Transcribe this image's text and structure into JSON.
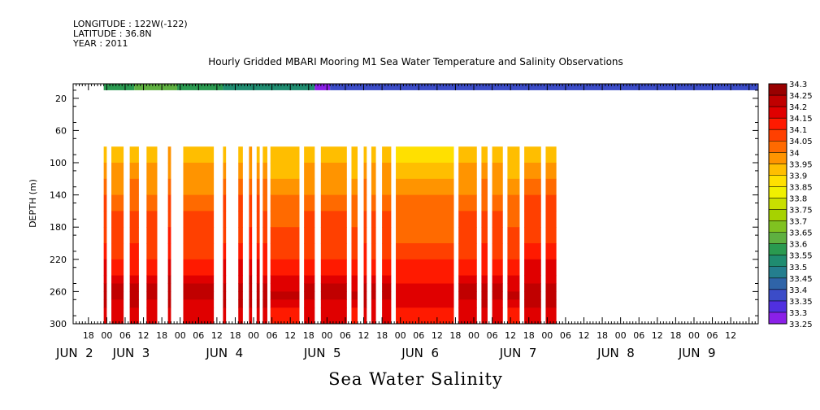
{
  "header": {
    "longitude": "LONGITUDE : 122W(-122)",
    "latitude": "LATITUDE : 36.8N",
    "year": "YEAR : 2011"
  },
  "chart_data": {
    "type": "heatmap",
    "title": "Hourly Gridded MBARI Mooring M1 Sea Water Temperature and Salinity Observations",
    "caption": "Sea Water Salinity",
    "ylabel": "DEPTH (m)",
    "x_unit": "hours from JUN 1 00:00",
    "xlim": [
      13,
      237
    ],
    "ylim": [
      300,
      2
    ],
    "y_reversed": true,
    "y_ticks": [
      20,
      60,
      100,
      140,
      180,
      220,
      260,
      300
    ],
    "x_hour_ticks": [
      {
        "x": 18,
        "label": "18"
      },
      {
        "x": 24,
        "label": "00"
      },
      {
        "x": 30,
        "label": "06"
      },
      {
        "x": 36,
        "label": "12"
      },
      {
        "x": 42,
        "label": "18"
      },
      {
        "x": 48,
        "label": "00"
      },
      {
        "x": 54,
        "label": "06"
      },
      {
        "x": 60,
        "label": "12"
      },
      {
        "x": 66,
        "label": "18"
      },
      {
        "x": 72,
        "label": "00"
      },
      {
        "x": 78,
        "label": "06"
      },
      {
        "x": 84,
        "label": "12"
      },
      {
        "x": 90,
        "label": "18"
      },
      {
        "x": 96,
        "label": "00"
      },
      {
        "x": 102,
        "label": "06"
      },
      {
        "x": 108,
        "label": "12"
      },
      {
        "x": 114,
        "label": "18"
      },
      {
        "x": 120,
        "label": "00"
      },
      {
        "x": 126,
        "label": "06"
      },
      {
        "x": 132,
        "label": "12"
      },
      {
        "x": 138,
        "label": "18"
      },
      {
        "x": 144,
        "label": "00"
      },
      {
        "x": 150,
        "label": "06"
      },
      {
        "x": 156,
        "label": "12"
      },
      {
        "x": 162,
        "label": "18"
      },
      {
        "x": 168,
        "label": "00"
      },
      {
        "x": 174,
        "label": "06"
      },
      {
        "x": 180,
        "label": "12"
      },
      {
        "x": 186,
        "label": "18"
      },
      {
        "x": 192,
        "label": "00"
      },
      {
        "x": 198,
        "label": "06"
      },
      {
        "x": 204,
        "label": "12"
      },
      {
        "x": 210,
        "label": "18"
      },
      {
        "x": 216,
        "label": "00"
      },
      {
        "x": 222,
        "label": "06"
      },
      {
        "x": 228,
        "label": "12"
      }
    ],
    "x_day_labels": [
      {
        "x": 13.5,
        "label": "JUN  2"
      },
      {
        "x": 32,
        "label": "JUN  3"
      },
      {
        "x": 62.5,
        "label": "JUN  4"
      },
      {
        "x": 94.5,
        "label": "JUN  5"
      },
      {
        "x": 126.5,
        "label": "JUN  6"
      },
      {
        "x": 158.5,
        "label": "JUN  7"
      },
      {
        "x": 190.5,
        "label": "JUN  8"
      },
      {
        "x": 217,
        "label": "JUN  9"
      }
    ],
    "colorbar": {
      "levels": [
        "34.3",
        "34.25",
        "34.2",
        "34.15",
        "34.1",
        "34.05",
        "34",
        "33.95",
        "33.9",
        "33.85",
        "33.8",
        "33.75",
        "33.7",
        "33.65",
        "33.6",
        "33.55",
        "33.5",
        "33.45",
        "33.4",
        "33.35",
        "33.3",
        "33.25"
      ],
      "colors": [
        "#990000",
        "#c00000",
        "#e00000",
        "#ff1a00",
        "#ff4000",
        "#ff6a00",
        "#ff9400",
        "#ffbe00",
        "#ffe000",
        "#f0f000",
        "#c8e000",
        "#a6d200",
        "#80c220",
        "#5eb040",
        "#2a9a50",
        "#1f8c70",
        "#247e8e",
        "#2f64a8",
        "#3b4cc8",
        "#5030e0",
        "#8a20e8",
        "#d41cf0"
      ]
    },
    "surface_band": {
      "depth_range": [
        2,
        10
      ],
      "segments": [
        {
          "x0": 23,
          "x1": 33,
          "value": 33.62
        },
        {
          "x0": 33,
          "x1": 47,
          "value": 33.68
        },
        {
          "x0": 47,
          "x1": 62,
          "value": 33.64
        },
        {
          "x0": 62,
          "x1": 92,
          "value": 33.58
        },
        {
          "x0": 92,
          "x1": 97,
          "value": 33.3
        },
        {
          "x0": 97,
          "x1": 237,
          "value": 33.42
        }
      ]
    },
    "profile_depths": [
      80,
      100,
      120,
      140,
      160,
      180,
      200,
      220,
      240,
      250,
      260,
      270,
      280,
      300
    ],
    "profile_values": [
      33.97,
      34.0,
      34.04,
      34.08,
      34.1,
      34.12,
      34.14,
      34.18,
      34.22,
      34.25,
      34.26,
      34.24,
      34.2,
      34.17
    ],
    "data_blocks": [
      {
        "x0": 23,
        "x1": 24,
        "adj": 0.02
      },
      {
        "x0": 25.5,
        "x1": 29.5,
        "adj": 0.0
      },
      {
        "x0": 31.5,
        "x1": 34.5,
        "adj": 0.01
      },
      {
        "x0": 37,
        "x1": 40.5,
        "adj": 0.0
      },
      {
        "x0": 44,
        "x1": 45,
        "adj": 0.03
      },
      {
        "x0": 49,
        "x1": 59,
        "adj": 0.0
      },
      {
        "x0": 62,
        "x1": 63,
        "adj": 0.02
      },
      {
        "x0": 67,
        "x1": 68.5,
        "adj": 0.02
      },
      {
        "x0": 70.5,
        "x1": 71.5,
        "adj": 0.03
      },
      {
        "x0": 73,
        "x1": 74,
        "adj": 0.02
      },
      {
        "x0": 75,
        "x1": 76.5,
        "adj": 0.01
      },
      {
        "x0": 77.5,
        "x1": 87,
        "adj": -0.01
      },
      {
        "x0": 88.5,
        "x1": 92,
        "adj": 0.0
      },
      {
        "x0": 94,
        "x1": 102.5,
        "adj": 0.0
      },
      {
        "x0": 104,
        "x1": 106,
        "adj": -0.01
      },
      {
        "x0": 108,
        "x1": 109,
        "adj": 0.01
      },
      {
        "x0": 110.5,
        "x1": 112,
        "adj": 0.0
      },
      {
        "x0": 114,
        "x1": 117,
        "adj": 0.0
      },
      {
        "x0": 118.5,
        "x1": 137.5,
        "adj": -0.02
      },
      {
        "x0": 139,
        "x1": 145,
        "adj": 0.0
      },
      {
        "x0": 146.5,
        "x1": 148.5,
        "adj": 0.01
      },
      {
        "x0": 150,
        "x1": 153.5,
        "adj": 0.0
      },
      {
        "x0": 155,
        "x1": 159,
        "adj": -0.01
      },
      {
        "x0": 160.5,
        "x1": 166,
        "adj": 0.02
      },
      {
        "x0": 167.5,
        "x1": 171,
        "adj": 0.02
      }
    ],
    "grid": false
  }
}
